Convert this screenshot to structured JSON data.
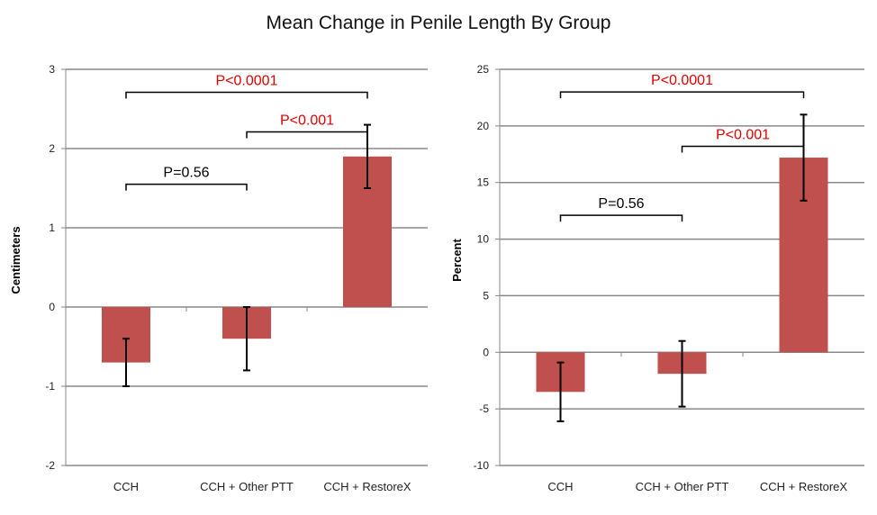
{
  "title": "Mean Change in Penile Length By Group",
  "colors": {
    "bar": "#c0504d",
    "annotation": "#e00000",
    "axis": "#888888",
    "text": "#222222"
  },
  "chart_data": [
    {
      "type": "bar",
      "categories": [
        "CCH",
        "CCH + Other PTT",
        "CCH + RestoreX"
      ],
      "values": [
        -0.7,
        -0.4,
        1.9
      ],
      "error_bars": [
        [
          -1.0,
          -0.4
        ],
        [
          -0.8,
          0.0
        ],
        [
          1.5,
          2.3
        ]
      ],
      "ylabel": "Centimeters",
      "ylim": [
        -2,
        3
      ],
      "yticks": [
        -2,
        -1,
        0,
        1,
        2,
        3
      ],
      "grid": true,
      "comparisons": [
        {
          "from": 0,
          "to": 2,
          "level": 2.71,
          "label": "P<0.0001",
          "significant": true
        },
        {
          "from": 1,
          "to": 2,
          "level": 2.21,
          "label": "P<0.001",
          "significant": true
        },
        {
          "from": 0,
          "to": 1,
          "level": 1.55,
          "label": "P=0.56",
          "significant": false
        }
      ]
    },
    {
      "type": "bar",
      "categories": [
        "CCH",
        "CCH + Other PTT",
        "CCH + RestoreX"
      ],
      "values": [
        -3.5,
        -1.9,
        17.2
      ],
      "error_bars": [
        [
          -6.1,
          -0.9
        ],
        [
          -4.8,
          1.0
        ],
        [
          13.4,
          21.0
        ]
      ],
      "ylabel": "Percent",
      "ylim": [
        -10,
        25
      ],
      "yticks": [
        -10,
        -5,
        0,
        5,
        10,
        15,
        20,
        25
      ],
      "grid": true,
      "comparisons": [
        {
          "from": 0,
          "to": 2,
          "level": 23.0,
          "label": "P<0.0001",
          "significant": true
        },
        {
          "from": 1,
          "to": 2,
          "level": 18.2,
          "label": "P<0.001",
          "significant": true
        },
        {
          "from": 0,
          "to": 1,
          "level": 12.1,
          "label": "P=0.56",
          "significant": false
        }
      ]
    }
  ]
}
